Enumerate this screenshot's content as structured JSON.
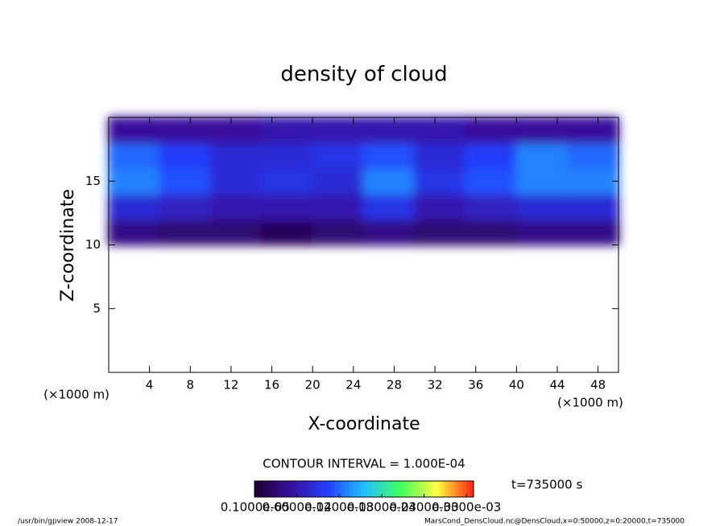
{
  "chart_data": {
    "type": "heatmap",
    "title": "density of cloud",
    "x_label": "X-coordinate",
    "y_label": "Z-coordinate",
    "unit_label": "(×1000 m)",
    "xlim": [
      0,
      50
    ],
    "ylim": [
      0,
      20
    ],
    "xticks": [
      4,
      8,
      12,
      16,
      20,
      24,
      28,
      32,
      36,
      40,
      44,
      48
    ],
    "yticks": [
      5,
      10,
      15
    ],
    "x_edges": [
      0,
      5,
      10,
      15,
      20,
      25,
      30,
      35,
      40,
      45,
      50
    ],
    "z_edges": [
      10,
      12,
      14,
      16,
      18,
      20
    ],
    "values": [
      [
        4e-05,
        3e-05,
        3e-05,
        2e-05,
        3e-05,
        4e-05,
        3e-05,
        3e-05,
        4e-05,
        4e-05
      ],
      [
        8e-05,
        7e-05,
        6e-05,
        6e-05,
        6e-05,
        9e-05,
        6e-05,
        7e-05,
        8e-05,
        8e-05
      ],
      [
        0.00013,
        0.00011,
        8e-05,
        9e-05,
        8e-05,
        0.00013,
        9e-05,
        0.00011,
        0.00013,
        0.00013
      ],
      [
        0.00012,
        0.0001,
        8e-05,
        8e-05,
        9e-05,
        0.00011,
        8e-05,
        0.0001,
        0.00013,
        0.00012
      ],
      [
        5e-05,
        5e-05,
        5e-05,
        6e-05,
        6e-05,
        6e-05,
        6e-05,
        5e-05,
        5e-05,
        5e-05
      ]
    ],
    "colormap": [
      "#1a0030",
      "#3a10a0",
      "#2040ff",
      "#20c0ff",
      "#40ff60",
      "#ffff40",
      "#ff2010"
    ],
    "clim": [
      0,
      0.00031
    ],
    "cticks": [
      {
        "value": 1e-06,
        "label": "0.1000e-05"
      },
      {
        "value": 6e-05,
        "label": "0.6000e-04"
      },
      {
        "value": 0.00012,
        "label": "0.1200e-03"
      },
      {
        "value": 0.00018,
        "label": "0.1800e-03"
      },
      {
        "value": 0.00024,
        "label": "0.2400e-03"
      },
      {
        "value": 0.0003,
        "label": "0.3000e-03"
      }
    ],
    "contour_interval": "CONTOUR INTERVAL = 1.000E-04",
    "time_label": "t=735000 s",
    "footer_left": "/usr/bin/gpview   2008-12-17",
    "footer_right": "MarsCond_DensCloud.nc@DensCloud,x=0:50000,z=0:20000,t=735000"
  }
}
